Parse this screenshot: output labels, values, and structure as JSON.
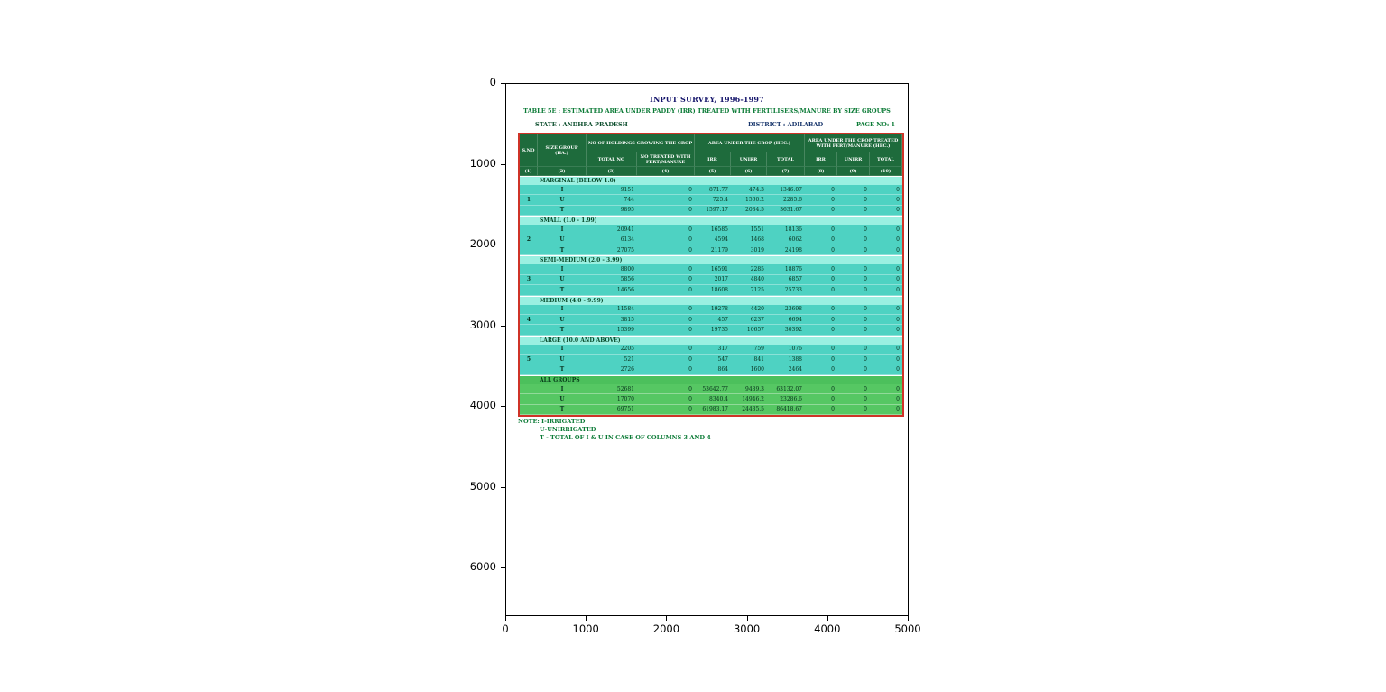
{
  "figure": {
    "y_ticks": [
      "0",
      "1000",
      "2000",
      "3000",
      "4000",
      "5000",
      "6000"
    ],
    "x_ticks": [
      "0",
      "1000",
      "2000",
      "3000",
      "4000",
      "5000"
    ]
  },
  "document": {
    "title": "INPUT SURVEY, 1996-1997",
    "subtitle": "TABLE 5E : ESTIMATED AREA UNDER PADDY (IRR) TREATED WITH FERTILISERS/MANURE BY SIZE GROUPS",
    "state_label": "STATE : ANDHRA PRADESH",
    "district_label": "DISTRICT : ADILABAD",
    "page_label": "PAGE NO: 1",
    "notes": [
      "NOTE: I-IRRIGATED",
      "U-UNIRRIGATED",
      "T - TOTAL OF I & U IN CASE OF COLUMNS 3 AND 4"
    ]
  },
  "table": {
    "header": {
      "col_sno": "S.NO",
      "col_size_group": "SIZE GROUP (HA.)",
      "grp_holdings": "NO OF HOLDINGS GROWING THE CROP",
      "grp_area": "AREA UNDER THE CROP (HEC.)",
      "grp_treated": "AREA UNDER THE CROP TREATED WITH FERT/MANURE (HEC.)",
      "sub": [
        "TOTAL NO",
        "NO TREATED WITH FERT/MANURE",
        "IRR",
        "UNIRR",
        "TOTAL",
        "IRR",
        "UNIRR",
        "TOTAL"
      ],
      "col_numbers": [
        "(1)",
        "(2)",
        "(3)",
        "(4)",
        "(5)",
        "(6)",
        "(7)",
        "(8)",
        "(9)",
        "(10)"
      ]
    },
    "groups": [
      {
        "sno": "1",
        "label": "MARGINAL (BELOW 1.0)",
        "rows": [
          [
            "I",
            "9151",
            "0",
            "871.77",
            "474.3",
            "1346.07",
            "0",
            "0",
            "0"
          ],
          [
            "U",
            "744",
            "0",
            "725.4",
            "1560.2",
            "2285.6",
            "0",
            "0",
            "0"
          ],
          [
            "T",
            "9895",
            "0",
            "1597.17",
            "2034.5",
            "3631.67",
            "0",
            "0",
            "0"
          ]
        ]
      },
      {
        "sno": "2",
        "label": "SMALL (1.0 - 1.99)",
        "rows": [
          [
            "I",
            "20941",
            "0",
            "16585",
            "1551",
            "18136",
            "0",
            "0",
            "0"
          ],
          [
            "U",
            "6134",
            "0",
            "4594",
            "1468",
            "6062",
            "0",
            "0",
            "0"
          ],
          [
            "T",
            "27075",
            "0",
            "21179",
            "3019",
            "24198",
            "0",
            "0",
            "0"
          ]
        ]
      },
      {
        "sno": "3",
        "label": "SEMI-MEDIUM (2.0 - 3.99)",
        "rows": [
          [
            "I",
            "8800",
            "0",
            "16591",
            "2285",
            "18876",
            "0",
            "0",
            "0"
          ],
          [
            "U",
            "5856",
            "0",
            "2017",
            "4840",
            "6857",
            "0",
            "0",
            "0"
          ],
          [
            "T",
            "14656",
            "0",
            "18608",
            "7125",
            "25733",
            "0",
            "0",
            "0"
          ]
        ]
      },
      {
        "sno": "4",
        "label": "MEDIUM (4.0 - 9.99)",
        "rows": [
          [
            "I",
            "11584",
            "0",
            "19278",
            "4420",
            "23698",
            "0",
            "0",
            "0"
          ],
          [
            "U",
            "3815",
            "0",
            "457",
            "6237",
            "6694",
            "0",
            "0",
            "0"
          ],
          [
            "T",
            "15399",
            "0",
            "19735",
            "10657",
            "30392",
            "0",
            "0",
            "0"
          ]
        ]
      },
      {
        "sno": "5",
        "label": "LARGE (10.0 AND ABOVE)",
        "rows": [
          [
            "I",
            "2205",
            "0",
            "317",
            "759",
            "1076",
            "0",
            "0",
            "0"
          ],
          [
            "U",
            "521",
            "0",
            "547",
            "841",
            "1388",
            "0",
            "0",
            "0"
          ],
          [
            "T",
            "2726",
            "0",
            "864",
            "1600",
            "2464",
            "0",
            "0",
            "0"
          ]
        ]
      },
      {
        "sno": "",
        "label": "ALL GROUPS",
        "green": true,
        "rows": [
          [
            "I",
            "52681",
            "0",
            "53642.77",
            "9489.3",
            "63132.07",
            "0",
            "0",
            "0"
          ],
          [
            "U",
            "17070",
            "0",
            "8340.4",
            "14946.2",
            "23286.6",
            "0",
            "0",
            "0"
          ],
          [
            "T",
            "69751",
            "0",
            "61983.17",
            "24435.5",
            "86418.67",
            "0",
            "0",
            "0"
          ]
        ]
      }
    ]
  }
}
